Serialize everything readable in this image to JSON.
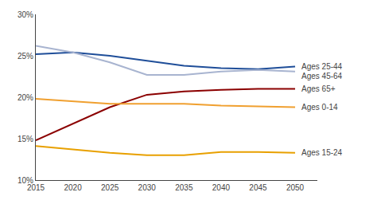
{
  "chart_data": {
    "type": "line",
    "x": [
      2015,
      2020,
      2025,
      2030,
      2035,
      2040,
      2045,
      2050
    ],
    "series": [
      {
        "name": "Ages 25-44",
        "color": "#1f4e99",
        "values": [
          25.2,
          25.4,
          25.0,
          24.4,
          23.8,
          23.5,
          23.4,
          23.7
        ]
      },
      {
        "name": "Ages 45-64",
        "color": "#a8b4d0",
        "values": [
          26.2,
          25.4,
          24.2,
          22.7,
          22.7,
          23.1,
          23.3,
          23.1
        ]
      },
      {
        "name": "Ages 65+",
        "color": "#8b0000",
        "values": [
          14.8,
          16.8,
          18.8,
          20.3,
          20.7,
          20.9,
          21.0,
          21.0
        ]
      },
      {
        "name": "Ages 0-14",
        "color": "#f0a030",
        "values": [
          19.8,
          19.5,
          19.2,
          19.2,
          19.2,
          19.0,
          18.9,
          18.8
        ]
      },
      {
        "name": "Ages 15-24",
        "color": "#e8a000",
        "values": [
          14.1,
          13.7,
          13.3,
          13.0,
          13.0,
          13.4,
          13.4,
          13.3
        ]
      }
    ],
    "xlim": [
      2015,
      2053
    ],
    "ylim": [
      10,
      30
    ],
    "xticks": [
      2015,
      2020,
      2025,
      2030,
      2035,
      2040,
      2045,
      2050
    ],
    "yticks": [
      {
        "value": 10,
        "label": "10%"
      },
      {
        "value": 15,
        "label": "15%"
      },
      {
        "value": 20,
        "label": "20%"
      },
      {
        "value": 25,
        "label": "25%"
      },
      {
        "value": 30,
        "label": "30%"
      }
    ],
    "grid": false
  }
}
